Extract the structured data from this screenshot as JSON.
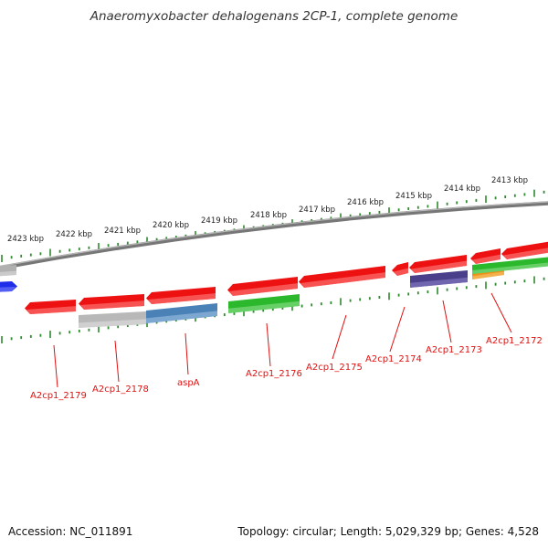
{
  "title": "Anaeromyxobacter dehalogenans 2CP-1, complete genome",
  "colors": {
    "background": "#ffffff",
    "backbone": "#808080",
    "tick": "#2e8b2e",
    "label": "#e01010",
    "leader": "#e01010"
  },
  "scale_labels": [
    "2423 kbp",
    "2422 kbp",
    "2421 kbp",
    "2420 kbp",
    "2419 kbp",
    "2418 kbp",
    "2417 kbp",
    "2416 kbp",
    "2415 kbp",
    "2414 kbp",
    "2413 kbp"
  ],
  "genes": [
    {
      "label": "A2cp1_2179",
      "color": "#ee1111"
    },
    {
      "label": "A2cp1_2178",
      "color": "#ee1111"
    },
    {
      "label": "aspA",
      "color": "#ee1111"
    },
    {
      "label": "A2cp1_2176",
      "color": "#ee1111"
    },
    {
      "label": "A2cp1_2175",
      "color": "#ee1111"
    },
    {
      "label": "A2cp1_2174",
      "color": "#ee1111"
    },
    {
      "label": "A2cp1_2173",
      "color": "#ee1111"
    },
    {
      "label": "A2cp1_2172",
      "color": "#ee1111"
    }
  ],
  "footer": {
    "accession": "Accession: NC_011891",
    "summary": "Topology: circular; Length: 5,029,329 bp; Genes: 4,528"
  }
}
